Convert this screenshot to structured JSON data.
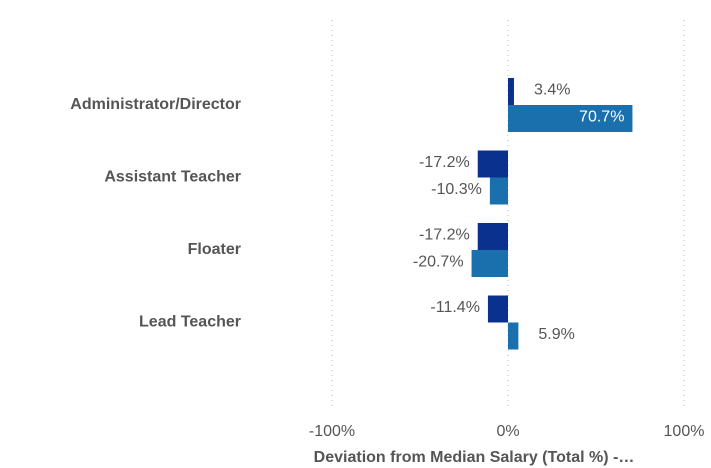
{
  "chart_data": {
    "type": "hbar",
    "categories": [
      "Administrator/Director",
      "Assistant Teacher",
      "Floater",
      "Lead Teacher"
    ],
    "series": [
      {
        "color": "#0b318f",
        "values": [
          3.4,
          -17.2,
          -17.2,
          -11.4
        ],
        "value_labels": [
          "3.4%",
          "-17.2%",
          "-17.2%",
          "-11.4%"
        ]
      },
      {
        "color": "#1a6fad",
        "values": [
          70.7,
          -10.3,
          -20.7,
          5.9
        ],
        "value_labels": [
          "70.7%",
          "-10.3%",
          "-20.7%",
          "5.9%"
        ]
      }
    ],
    "xlim": [
      -100,
      100
    ],
    "xticks": [
      {
        "value": -100,
        "label": "-100%"
      },
      {
        "value": 0,
        "label": "0%"
      },
      {
        "value": 100,
        "label": "100%"
      }
    ],
    "x_label": "Deviation from Median Salary (Total %) -…",
    "grid": true
  }
}
